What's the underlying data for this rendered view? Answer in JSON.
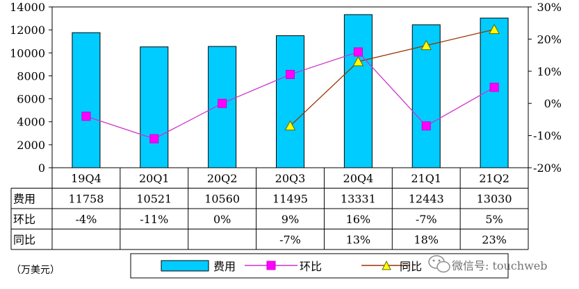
{
  "chart_data": {
    "type": "bar",
    "categories": [
      "19Q4",
      "20Q1",
      "20Q2",
      "20Q3",
      "20Q4",
      "21Q1",
      "21Q2"
    ],
    "series": [
      {
        "name": "费用",
        "type": "bar",
        "axis": "left",
        "values": [
          11758,
          10521,
          10560,
          11495,
          13331,
          12443,
          13030
        ]
      },
      {
        "name": "环比",
        "type": "line",
        "axis": "right",
        "values": [
          -4,
          -11,
          0,
          9,
          16,
          -7,
          5
        ]
      },
      {
        "name": "同比",
        "type": "line",
        "axis": "right",
        "values": [
          null,
          null,
          null,
          -7,
          13,
          18,
          23
        ]
      }
    ],
    "ylim_left": [
      0,
      14000
    ],
    "yticks_left": [
      0,
      2000,
      4000,
      6000,
      8000,
      10000,
      12000,
      14000
    ],
    "ylim_right": [
      -20,
      30
    ],
    "yticks_right": [
      "-20%",
      "-10%",
      "0%",
      "10%",
      "20%",
      "30%"
    ],
    "unit_label": "（万美元）",
    "legend_placement": "bottom",
    "grid": false
  },
  "table": {
    "rows": [
      {
        "label": "费用",
        "cells": [
          "11758",
          "10521",
          "10560",
          "11495",
          "13331",
          "12443",
          "13030"
        ]
      },
      {
        "label": "环比",
        "cells": [
          "-4%",
          "-11%",
          "0%",
          "9%",
          "16%",
          "-7%",
          "5%"
        ]
      },
      {
        "label": "同比",
        "cells": [
          "",
          "",
          "",
          "-7%",
          "13%",
          "18%",
          "23%"
        ]
      }
    ]
  },
  "watermark": {
    "text": "微信号: touchweb",
    "icon": "wechat-icon"
  },
  "colors": {
    "bar": "#00ccff",
    "huanbi": "#ff00ff",
    "huanbi_line": "#cc33cc",
    "tongbi": "#ffff00",
    "tongbi_line": "#993300"
  }
}
